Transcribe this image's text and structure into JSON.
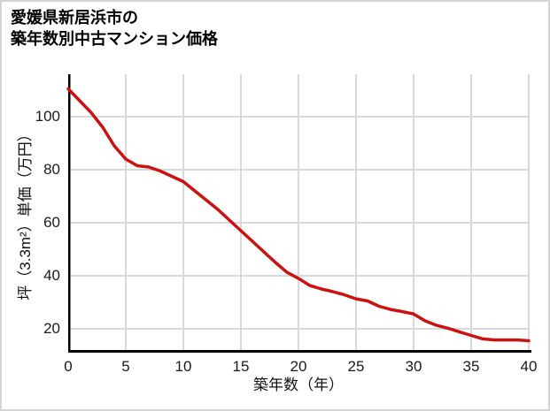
{
  "page": {
    "background": "#ffffff",
    "border_color": "#d4d4d4"
  },
  "title": {
    "line1": "愛媛県新居浜市の",
    "line2": "築年数別中古マンション価格"
  },
  "chart_data": {
    "type": "line",
    "title": "愛媛県新居浜市の築年数別中古マンション価格",
    "xlabel": "築年数（年）",
    "ylabel": "坪（3.3m²）単価（万円）",
    "x": [
      0,
      1,
      2,
      3,
      4,
      5,
      6,
      7,
      8,
      9,
      10,
      11,
      12,
      13,
      14,
      15,
      16,
      17,
      18,
      19,
      20,
      21,
      22,
      23,
      24,
      25,
      26,
      27,
      28,
      29,
      30,
      31,
      32,
      33,
      34,
      35,
      36,
      37,
      38,
      39,
      40
    ],
    "values": [
      110.5,
      106,
      101.5,
      96,
      89,
      84,
      81.5,
      81,
      79.5,
      77.5,
      75.5,
      72,
      68.5,
      65,
      61,
      57,
      53,
      49,
      45,
      41.3,
      39,
      36.3,
      35,
      34,
      32.8,
      31.3,
      30.5,
      28.5,
      27.3,
      26.5,
      25.6,
      23,
      21.3,
      20.2,
      18.8,
      17.5,
      16.2,
      15.8,
      15.8,
      15.8,
      15.5
    ],
    "xticks": [
      0,
      5,
      10,
      15,
      20,
      25,
      30,
      35,
      40
    ],
    "yticks": [
      20,
      40,
      60,
      80,
      100
    ],
    "xlim": [
      0,
      40
    ],
    "ylim": [
      11,
      116
    ],
    "grid": true,
    "legend": "none",
    "line_color": "#cc1111",
    "grid_color": "#d9d9d9",
    "axis_color": "#000000",
    "tick_label_color": "#1a1a1a"
  }
}
